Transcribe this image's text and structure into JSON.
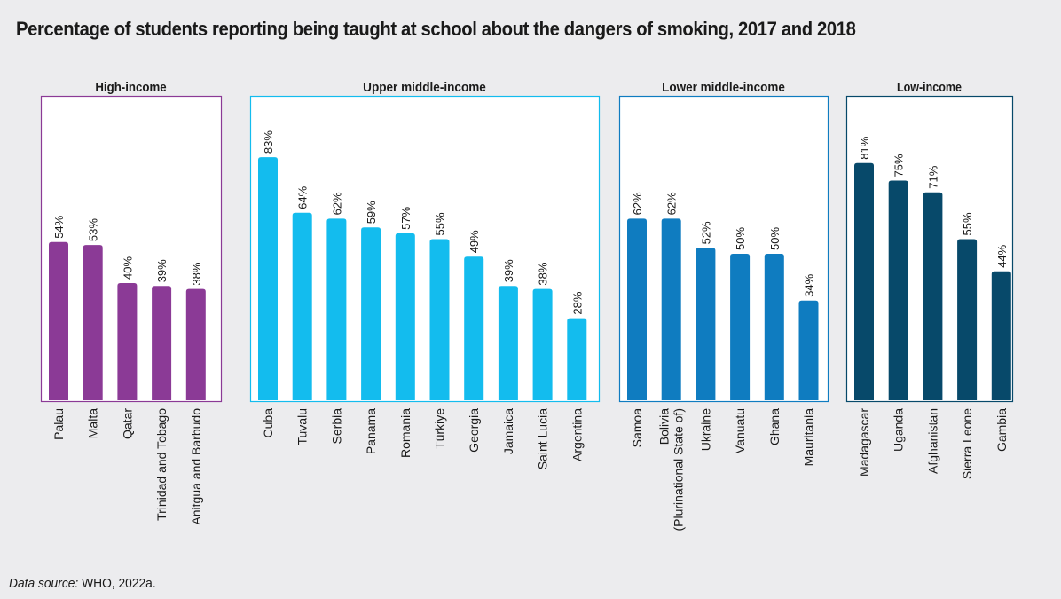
{
  "title": "Percentage of students reporting being taught at school about the dangers of smoking, 2017 and 2018",
  "source": {
    "label": "Data source:",
    "text": "WHO, 2022a."
  },
  "chart_data": {
    "type": "bar",
    "value_format": "percent",
    "ylim": [
      0,
      100
    ],
    "grid": false,
    "panels": [
      {
        "name": "High-income",
        "color": "#8b3a96",
        "border": "#8b3a96",
        "categories": [
          "Palau",
          "Malta",
          "Qatar",
          "Trinidad and Tobago",
          "Anitgua and Barbudo"
        ],
        "values": [
          54,
          53,
          40,
          39,
          38
        ]
      },
      {
        "name": "Upper middle-income",
        "color": "#13bcee",
        "border": "#13bcee",
        "categories": [
          "Cuba",
          "Tuvalu",
          "Serbia",
          "Panama",
          "Romania",
          "Türkiye",
          "Georgia",
          "Jamaica",
          "Saint Lucia",
          "Argentina"
        ],
        "values": [
          83,
          64,
          62,
          59,
          57,
          55,
          49,
          39,
          38,
          28
        ]
      },
      {
        "name": "Lower middle-income",
        "color": "#0f7cc0",
        "border": "#0f7cc0",
        "categories": [
          "Samoa",
          "Bolivia (Plurinational State of)",
          "Ukraine",
          "Vanuatu",
          "Ghana",
          "Mauritania"
        ],
        "category_lines": [
          [
            "Samoa"
          ],
          [
            "Bolivia",
            "(Plurinational State of)"
          ],
          [
            "Ukraine"
          ],
          [
            "Vanuatu"
          ],
          [
            "Ghana"
          ],
          [
            "Mauritania"
          ]
        ],
        "values": [
          62,
          62,
          52,
          50,
          50,
          34
        ]
      },
      {
        "name": "Low-income",
        "color": "#07496a",
        "border": "#07496a",
        "categories": [
          "Madagascar",
          "Uganda",
          "Afghanistan",
          "Sierra Leone",
          "Gambia"
        ],
        "values": [
          81,
          75,
          71,
          55,
          44
        ]
      }
    ]
  }
}
